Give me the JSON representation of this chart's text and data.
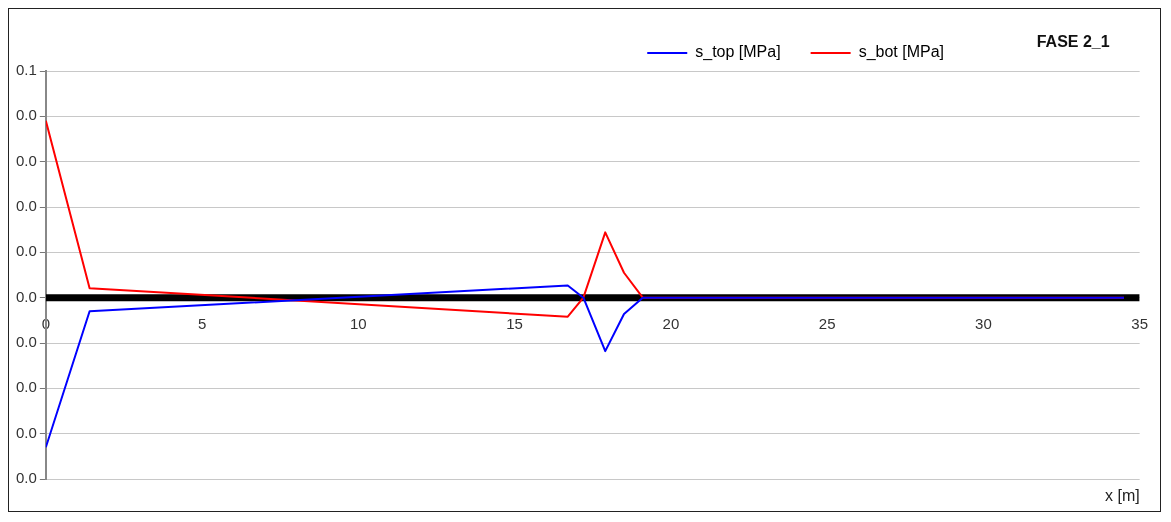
{
  "chart_data": {
    "type": "line",
    "title": "FASE 2_1",
    "xlabel": "x [m]",
    "xlim": [
      0,
      35
    ],
    "xticks": [
      0,
      5,
      10,
      15,
      20,
      25,
      30,
      35
    ],
    "ylim": [
      -0.04,
      0.05
    ],
    "yticks": [
      {
        "value": 0.05,
        "label": "0.1"
      },
      {
        "value": 0.04,
        "label": "0.0"
      },
      {
        "value": 0.03,
        "label": "0.0"
      },
      {
        "value": 0.02,
        "label": "0.0"
      },
      {
        "value": 0.01,
        "label": "0.0"
      },
      {
        "value": 0,
        "label": "0.0"
      },
      {
        "value": -0.01,
        "label": "0.0"
      },
      {
        "value": -0.02,
        "label": "0.0"
      },
      {
        "value": -0.03,
        "label": "0.0"
      },
      {
        "value": -0.04,
        "label": "0.0"
      }
    ],
    "grid": "y",
    "legend": "top right",
    "marker": "none",
    "line_style": "solid",
    "series": [
      {
        "color": "#000000",
        "x": [
          0,
          35
        ],
        "values": [
          0,
          0
        ]
      },
      {
        "name": "s_top [MPa]",
        "color": "#0000ff",
        "x": [
          0,
          1.4,
          16.7,
          17.2,
          17.9,
          18.5,
          19.1,
          34.5
        ],
        "values": [
          -0.033,
          -0.003,
          0.0027,
          0,
          -0.0118,
          -0.0036,
          0,
          0
        ]
      },
      {
        "name": "s_bot [MPa]",
        "color": "#ff0000",
        "x": [
          0,
          1.4,
          16.7,
          17.2,
          17.9,
          18.5,
          19.1,
          34.5
        ],
        "values": [
          0.039,
          0.0021,
          -0.0042,
          0,
          0.0144,
          0.0055,
          0,
          0
        ]
      }
    ]
  }
}
